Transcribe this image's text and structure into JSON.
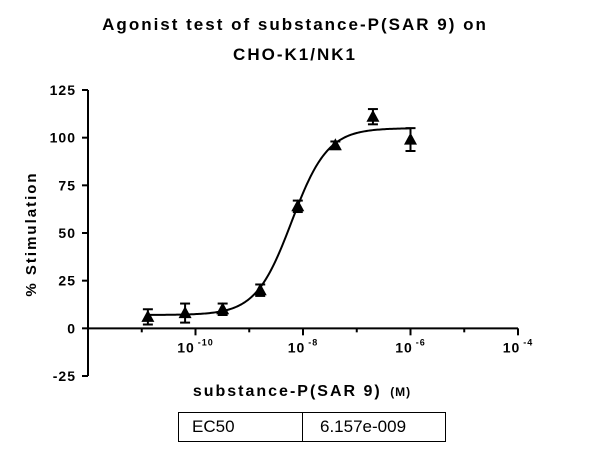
{
  "chart_data": {
    "type": "scatter",
    "title_lines": [
      "Agonist test of  substance-P(SAR 9) on",
      "CHO-K1/NK1"
    ],
    "xlabel": "substance-P(SAR 9)",
    "xlabel_unit": "(M)",
    "ylabel": "% Stimulation",
    "x_scale": "log",
    "xlim": [
      1e-12,
      0.0001
    ],
    "ylim": [
      -25,
      125
    ],
    "yticks": [
      -25,
      0,
      25,
      50,
      75,
      100,
      125
    ],
    "xticks": [
      {
        "value": 1e-10,
        "base": "10",
        "exp": "-10"
      },
      {
        "value": 1e-08,
        "base": "10",
        "exp": "-8"
      },
      {
        "value": 1e-06,
        "base": "10",
        "exp": "-6"
      },
      {
        "value": 0.0001,
        "base": "10",
        "exp": "-4"
      }
    ],
    "series": [
      {
        "marker": "triangle",
        "points": [
          {
            "x": 1.3e-11,
            "y": 6,
            "err": 4
          },
          {
            "x": 6.4e-11,
            "y": 8,
            "err": 5
          },
          {
            "x": 3.2e-10,
            "y": 10,
            "err": 3
          },
          {
            "x": 1.6e-09,
            "y": 20,
            "err": 3
          },
          {
            "x": 8e-09,
            "y": 64,
            "err": 3
          },
          {
            "x": 4e-08,
            "y": 96,
            "err": 2
          },
          {
            "x": 2e-07,
            "y": 111,
            "err": 4
          },
          {
            "x": 1e-06,
            "y": 99,
            "err": 6
          }
        ]
      }
    ],
    "fit": {
      "bottom": 7,
      "top": 105,
      "ec50": 6.157e-09,
      "hill": 1.3
    },
    "grid": false,
    "legend": "none"
  },
  "ec50_table": {
    "label": "EC50",
    "value": "6.157e-009"
  }
}
